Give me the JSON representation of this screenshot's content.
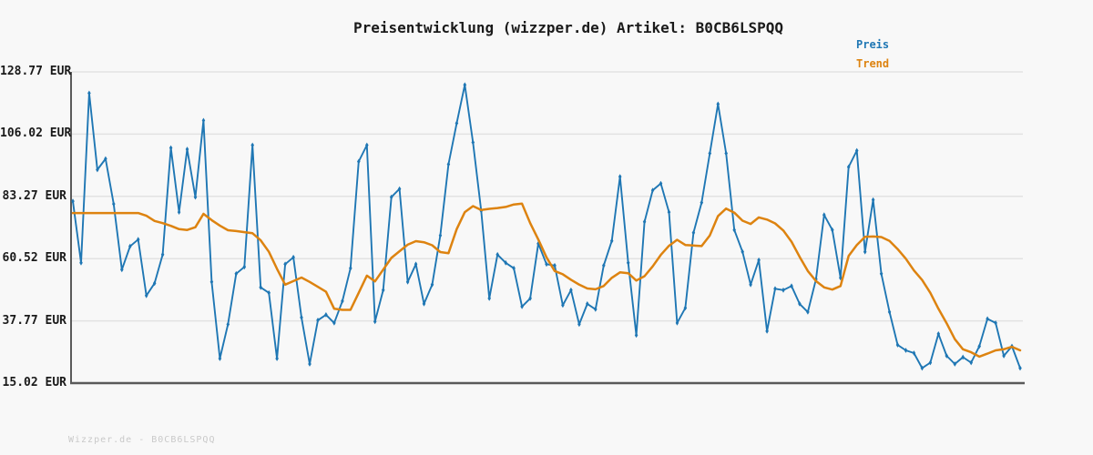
{
  "title": "Preisentwicklung (wizzper.de) Artikel: B0CB6LSPQQ",
  "legend": {
    "preis_label": "Preis",
    "trend_label": "Trend"
  },
  "watermark": "Wizzper.de - B0CB6LSPQQ",
  "colors": {
    "preis": "#1f77b4",
    "trend": "#dd8310",
    "grid": "#e2e2e2",
    "spine": "#5a5a5a",
    "background": "#f8f8f8",
    "title_text": "#1a1a1a",
    "tick_text": "#1a1a1a",
    "watermark_text": "#c9c9c9"
  },
  "chart_data": {
    "type": "line",
    "title": "Preisentwicklung (wizzper.de) Artikel: B0CB6LSPQQ",
    "currency": "EUR",
    "xlabel": "",
    "ylabel": "",
    "x_tick_labels_visible": false,
    "grid": "horizontal",
    "legend_position": "top-right",
    "ylim": [
      15.02,
      128.77
    ],
    "y_ticks": [
      {
        "label": "128.77 EUR",
        "value": 128.77
      },
      {
        "label": "106.02 EUR",
        "value": 106.02
      },
      {
        "label": "83.27 EUR",
        "value": 83.27
      },
      {
        "label": "60.52 EUR",
        "value": 60.52
      },
      {
        "label": "37.77 EUR",
        "value": 37.77
      },
      {
        "label": "15.02 EUR",
        "value": 15.02
      }
    ],
    "series": [
      {
        "name": "Preis",
        "color": "#1f77b4",
        "marker": "diamond",
        "values": [
          81.5,
          59,
          121,
          93,
          97,
          80.5,
          56.5,
          65,
          67.5,
          47,
          51.5,
          62,
          101,
          77.5,
          100.5,
          83,
          111,
          52,
          24,
          36.5,
          55,
          57.5,
          102,
          50,
          48,
          24,
          58.5,
          61,
          39,
          22,
          38,
          40,
          37,
          45,
          57,
          96,
          102,
          37.5,
          49,
          83,
          86,
          52,
          58.5,
          44,
          51,
          69,
          95,
          110,
          124,
          103,
          78,
          46,
          62,
          59,
          57,
          43,
          46,
          66,
          58.5,
          58,
          43.5,
          49,
          36.5,
          44,
          42,
          58,
          67,
          90.5,
          59,
          32.5,
          74,
          85.5,
          88,
          77.5,
          37,
          42.5,
          70,
          81,
          99,
          117,
          99,
          71,
          63,
          51,
          60,
          34,
          49.5,
          49,
          50.5,
          44,
          41,
          53,
          76.5,
          71,
          53.5,
          94,
          100,
          63,
          82,
          55,
          41,
          29,
          27,
          26,
          20.5,
          22.5,
          33,
          25,
          22,
          24.5,
          22.5,
          28.5,
          38.5,
          37,
          25,
          28.5,
          20.5
        ]
      },
      {
        "name": "Trend",
        "color": "#dd8310",
        "marker": "none",
        "values": [
          77.2,
          77.2,
          77.2,
          77.2,
          77.2,
          77.2,
          77.2,
          77.2,
          77.2,
          76.2,
          74.3,
          73.5,
          72.5,
          71.3,
          71.0,
          72.0,
          76.9,
          74.6,
          72.6,
          70.9,
          70.6,
          70.2,
          69.8,
          67.2,
          63.0,
          56.8,
          51.0,
          52.3,
          53.6,
          52.0,
          50.2,
          48.4,
          42.2,
          41.8,
          41.8,
          48.0,
          54.3,
          52.2,
          56.5,
          60.8,
          63.2,
          65.6,
          66.9,
          66.5,
          65.4,
          62.9,
          62.5,
          71.3,
          77.5,
          79.7,
          78.3,
          78.7,
          79.0,
          79.4,
          80.3,
          80.6,
          73.5,
          67.5,
          61.0,
          56.0,
          54.8,
          52.8,
          51.0,
          49.6,
          49.3,
          50.5,
          53.5,
          55.5,
          55.2,
          52.5,
          54.1,
          57.7,
          61.9,
          65.2,
          67.4,
          65.5,
          65.3,
          65.1,
          69.0,
          76.1,
          78.8,
          77.3,
          74.4,
          73.2,
          75.6,
          74.8,
          73.4,
          70.8,
          66.7,
          61.2,
          56.0,
          52.3,
          50.0,
          49.2,
          50.5,
          61.5,
          65.5,
          68.5,
          68.6,
          68.4,
          67.0,
          64.0,
          60.5,
          56.2,
          52.7,
          48.0,
          42.2,
          36.9,
          31.1,
          27.4,
          26.3,
          24.7,
          25.8,
          27.0,
          27.4,
          28.3,
          27.0
        ]
      }
    ]
  }
}
